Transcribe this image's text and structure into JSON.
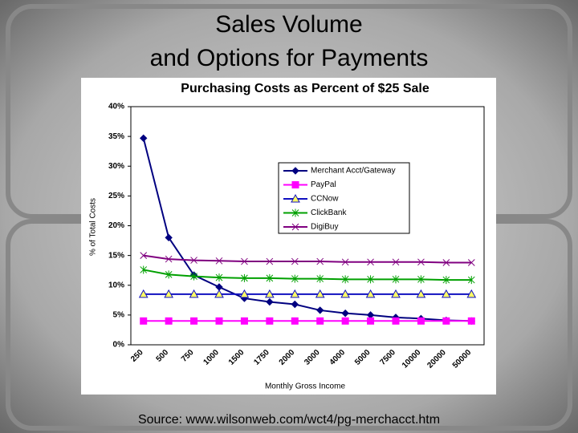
{
  "slide": {
    "title": [
      "Sales Volume",
      "and Options for Payments"
    ],
    "source": "Source: www.wilsonweb.com/wct4/pg-merchacct.htm"
  },
  "chart_data": {
    "type": "line",
    "title": "Purchasing Costs as Percent of $25 Sale",
    "x_label": "Monthly Gross Income",
    "y_label": "% of Total Costs",
    "categories": [
      "250",
      "500",
      "750",
      "1000",
      "1500",
      "1750",
      "2000",
      "3000",
      "4000",
      "5000",
      "7500",
      "10000",
      "20000",
      "50000"
    ],
    "series": [
      {
        "name": "Merchant Acct/Gateway",
        "color": "#000080",
        "marker": "diamond",
        "values": [
          34.7,
          18.0,
          11.7,
          9.7,
          7.8,
          7.2,
          6.8,
          5.8,
          5.3,
          5.0,
          4.6,
          4.4,
          4.1,
          4.0
        ]
      },
      {
        "name": "PayPal",
        "color": "#ff00ff",
        "marker": "square",
        "values": [
          4.0,
          4.0,
          4.0,
          4.0,
          4.0,
          4.0,
          4.0,
          4.0,
          4.0,
          4.0,
          4.0,
          4.0,
          4.0,
          4.0
        ]
      },
      {
        "name": "CCNow",
        "color": "#1010c0",
        "marker": "triangle",
        "values": [
          8.5,
          8.5,
          8.5,
          8.5,
          8.5,
          8.5,
          8.5,
          8.5,
          8.5,
          8.5,
          8.5,
          8.5,
          8.5,
          8.5
        ]
      },
      {
        "name": "ClickBank",
        "color": "#00a000",
        "marker": "star",
        "values": [
          12.6,
          11.8,
          11.5,
          11.3,
          11.2,
          11.2,
          11.1,
          11.1,
          11.0,
          11.0,
          11.0,
          11.0,
          10.9,
          10.9
        ]
      },
      {
        "name": "DigiBuy",
        "color": "#800080",
        "marker": "cross",
        "values": [
          15.0,
          14.4,
          14.2,
          14.1,
          14.0,
          14.0,
          14.0,
          14.0,
          13.9,
          13.9,
          13.9,
          13.9,
          13.8,
          13.8
        ]
      }
    ],
    "ylim": [
      0,
      40
    ],
    "yticks": [
      {
        "value": 0,
        "label": "0%"
      },
      {
        "value": 5,
        "label": "5%"
      },
      {
        "value": 10,
        "label": "10%"
      },
      {
        "value": 15,
        "label": "15%"
      },
      {
        "value": 20,
        "label": "20%"
      },
      {
        "value": 25,
        "label": "25%"
      },
      {
        "value": 30,
        "label": "30%"
      },
      {
        "value": 35,
        "label": "35%"
      },
      {
        "value": 40,
        "label": "40%"
      }
    ],
    "grid": false,
    "legend": "right"
  }
}
